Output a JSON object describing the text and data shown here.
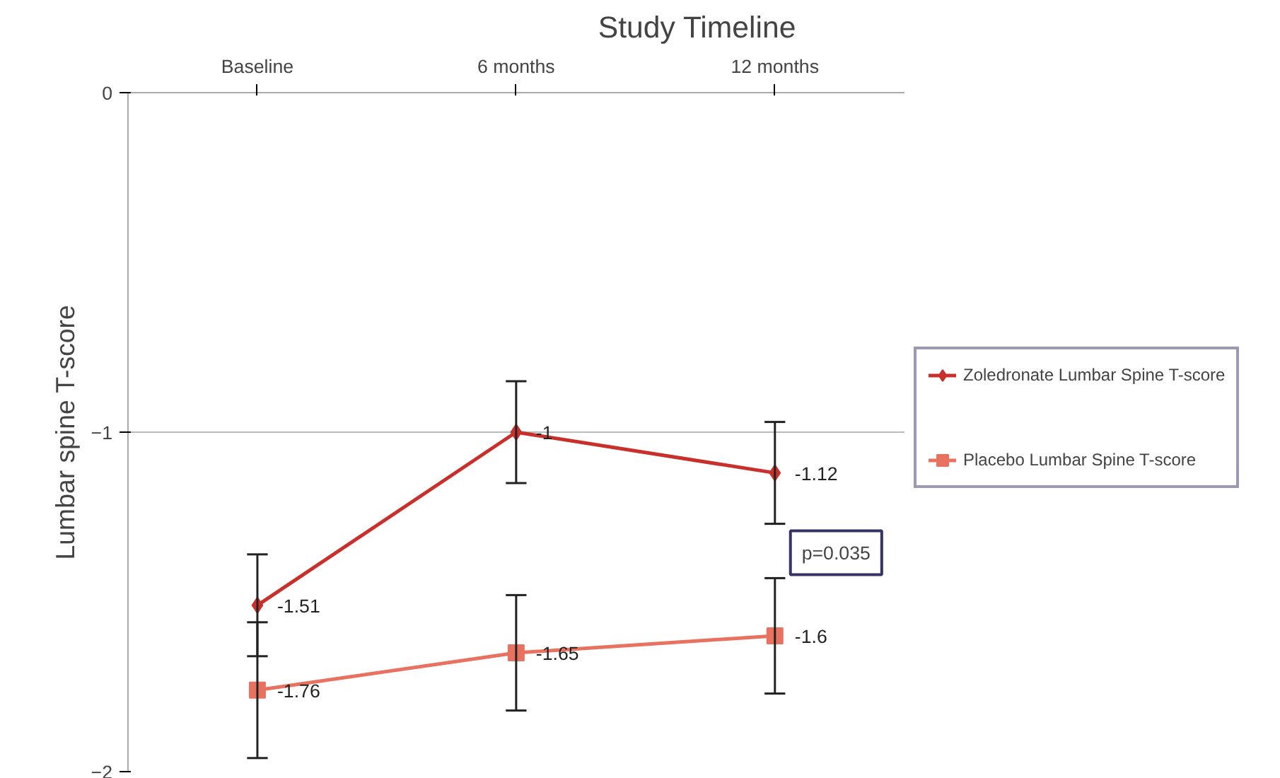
{
  "chart_data": {
    "type": "line",
    "title": "Study Timeline",
    "ylabel": "Lumbar spine T-score",
    "categories": [
      "Baseline",
      "6 months",
      "12 months"
    ],
    "series": [
      {
        "name": "Zoledronate Lumbar Spine T-score",
        "color": "#c9302c",
        "marker": "diamond",
        "values": [
          -1.51,
          -1,
          -1.12
        ],
        "errors": [
          0.15,
          0.15,
          0.15
        ]
      },
      {
        "name": "Placebo Lumbar Spine T-score",
        "color": "#e8725f",
        "marker": "square",
        "values": [
          -1.76,
          -1.65,
          -1.6
        ],
        "errors": [
          0.2,
          0.17,
          0.17
        ]
      }
    ],
    "ylim": [
      -2,
      0
    ],
    "yticks": [
      0,
      -1,
      -2
    ],
    "grid": "y",
    "legend": "right",
    "data_labels": true,
    "annotations": [
      "p=0.035"
    ]
  }
}
